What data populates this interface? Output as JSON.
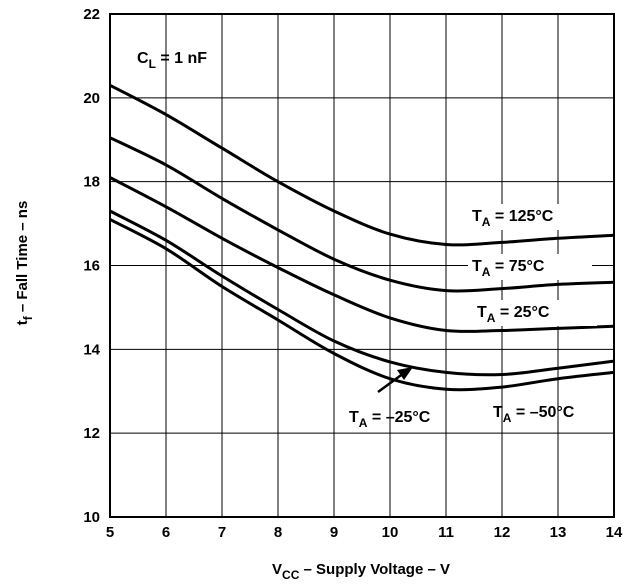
{
  "chart_data": {
    "type": "line",
    "title": "",
    "annotation": {
      "main": "C",
      "sub": "L",
      "rest": " = 1 nF"
    },
    "xlabel": {
      "main": "V",
      "sub": "CC",
      "rest": " – Supply Voltage – V"
    },
    "ylabel": {
      "main": "t",
      "sub": "f",
      "rest": " – Fall Time – ns"
    },
    "xlim": [
      5,
      14
    ],
    "ylim": [
      10,
      22
    ],
    "xticks": [
      5,
      6,
      7,
      8,
      9,
      10,
      11,
      12,
      13,
      14
    ],
    "yticks": [
      10,
      12,
      14,
      16,
      18,
      20,
      22
    ],
    "grid": true,
    "x": [
      5,
      6,
      7,
      8,
      9,
      10,
      11,
      12,
      13,
      14
    ],
    "series": [
      {
        "label_main": "T",
        "label_sub": "A",
        "label_rest": " = 125°C",
        "values": [
          20.3,
          19.6,
          18.8,
          18.0,
          17.3,
          16.75,
          16.5,
          16.55,
          16.65,
          16.72
        ]
      },
      {
        "label_main": "T",
        "label_sub": "A",
        "label_rest": " = 75°C",
        "values": [
          19.05,
          18.4,
          17.6,
          16.85,
          16.15,
          15.65,
          15.4,
          15.45,
          15.55,
          15.6
        ]
      },
      {
        "label_main": "T",
        "label_sub": "A",
        "label_rest": " = 25°C",
        "values": [
          18.1,
          17.4,
          16.65,
          15.95,
          15.3,
          14.75,
          14.45,
          14.45,
          14.5,
          14.55
        ]
      },
      {
        "label_main": "T",
        "label_sub": "A",
        "label_rest": " = –25°C",
        "values": [
          17.3,
          16.6,
          15.75,
          14.95,
          14.2,
          13.7,
          13.45,
          13.4,
          13.55,
          13.72
        ]
      },
      {
        "label_main": "T",
        "label_sub": "A",
        "label_rest": " = –50°C",
        "values": [
          17.1,
          16.4,
          15.5,
          14.7,
          13.9,
          13.3,
          13.05,
          13.1,
          13.3,
          13.45
        ]
      }
    ]
  }
}
